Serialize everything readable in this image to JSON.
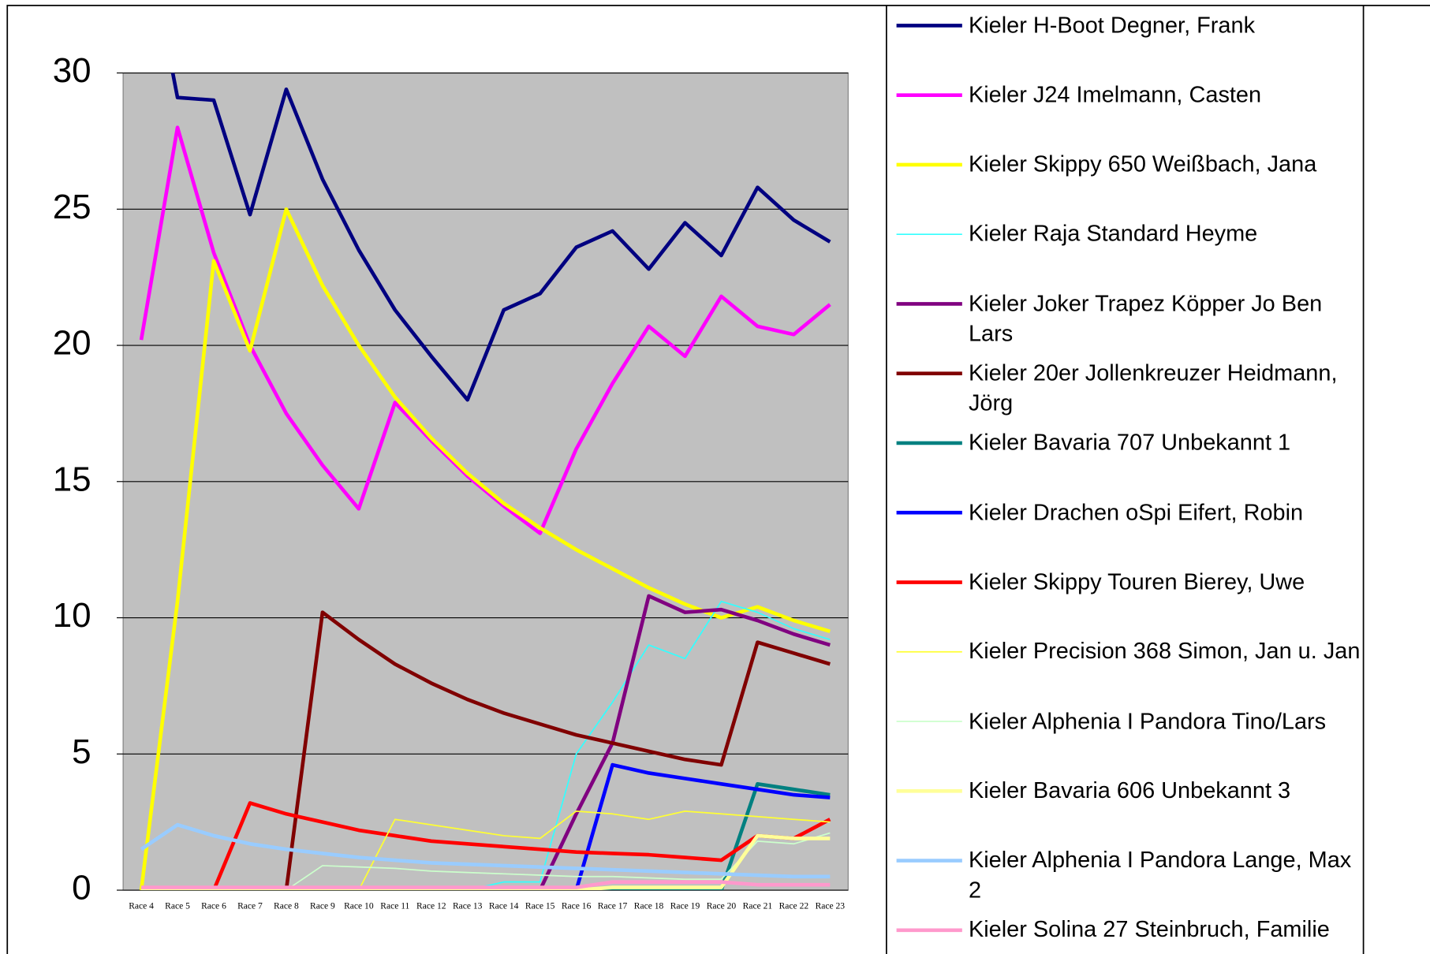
{
  "chart_data": {
    "type": "line",
    "categories": [
      "Race 4",
      "Race 5",
      "Race 6",
      "Race 7",
      "Race 8",
      "Race 9",
      "Race 10",
      "Race 11",
      "Race 12",
      "Race 13",
      "Race 14",
      "Race 15",
      "Race 16",
      "Race 17",
      "Race 18",
      "Race 19",
      "Race 20",
      "Race 21",
      "Race 22",
      "Race 23"
    ],
    "ylim": [
      0,
      30
    ],
    "yticks": [
      0,
      5,
      10,
      15,
      20,
      25,
      30
    ],
    "grid": true,
    "legend": "right",
    "series": [
      {
        "name": "Kieler H-Boot Degner, Frank",
        "color": "#000080",
        "width": 4,
        "values": [
          36,
          29.1,
          29.0,
          24.8,
          29.4,
          26.1,
          23.5,
          21.3,
          19.6,
          18.0,
          21.3,
          21.9,
          23.6,
          24.2,
          22.8,
          24.5,
          23.3,
          25.8,
          24.6,
          23.8
        ]
      },
      {
        "name": "Kieler J24 Imelmann, Casten",
        "color": "#ff00ff",
        "width": 4,
        "values": [
          20.2,
          28.0,
          23.4,
          20.0,
          17.5,
          15.6,
          14.0,
          17.9,
          16.5,
          15.2,
          14.1,
          13.1,
          16.2,
          18.6,
          20.7,
          19.6,
          21.8,
          20.7,
          20.4,
          21.5
        ]
      },
      {
        "name": "Kieler Skippy 650 Weißbach, Jana",
        "color": "#ffff00",
        "width": 4,
        "values": [
          0,
          10.6,
          23.1,
          19.8,
          25.0,
          22.2,
          20.0,
          18.1,
          16.6,
          15.3,
          14.2,
          13.3,
          12.5,
          11.8,
          11.1,
          10.5,
          10.0,
          10.4,
          9.9,
          9.5
        ]
      },
      {
        "name": "Kieler Raja Standard Heyme",
        "color": "#33ffff",
        "width": 1.5,
        "values": [
          0,
          0,
          0,
          0,
          0,
          0,
          0,
          0,
          0,
          0,
          0.3,
          0.3,
          5.0,
          6.9,
          9.0,
          8.5,
          10.6,
          10.2,
          9.6,
          9.2
        ]
      },
      {
        "name": "Kieler Joker Trapez Köpper Jo Ben Lars",
        "color": "#800080",
        "width": 4,
        "values": [
          0,
          0,
          0,
          0,
          0,
          0,
          0,
          0,
          0,
          0,
          0,
          0,
          2.8,
          5.4,
          10.8,
          10.2,
          10.3,
          9.9,
          9.4,
          9.0
        ]
      },
      {
        "name": "Kieler 20er Jollenkreuzer Heidmann, Jörg",
        "color": "#800000",
        "width": 4,
        "values": [
          0,
          0,
          0,
          0,
          0,
          10.2,
          9.2,
          8.3,
          7.6,
          7.0,
          6.5,
          6.1,
          5.7,
          5.4,
          5.1,
          4.8,
          4.6,
          9.1,
          8.7,
          8.3
        ]
      },
      {
        "name": "Kieler Bavaria 707 Unbekannt 1",
        "color": "#008080",
        "width": 4,
        "values": [
          0,
          0,
          0,
          0,
          0,
          0,
          0,
          0,
          0,
          0,
          0,
          0,
          0,
          0,
          0,
          0,
          0,
          3.9,
          3.7,
          3.5
        ]
      },
      {
        "name": "Kieler Drachen oSpi Eifert, Robin",
        "color": "#0000ff",
        "width": 4,
        "values": [
          0,
          0,
          0,
          0,
          0,
          0,
          0,
          0,
          0,
          0,
          0,
          0,
          0,
          4.6,
          4.3,
          4.1,
          3.9,
          3.7,
          3.5,
          3.4
        ]
      },
      {
        "name": "Kieler Skippy Touren Bierey, Uwe",
        "color": "#ff0000",
        "width": 4,
        "values": [
          0,
          0,
          0,
          3.2,
          2.8,
          2.5,
          2.2,
          2.0,
          1.8,
          1.7,
          1.6,
          1.5,
          1.4,
          1.35,
          1.3,
          1.2,
          1.1,
          2.0,
          1.9,
          2.6
        ]
      },
      {
        "name": "Kieler Precision 368 Simon, Jan u. Jan",
        "color": "#ffff33",
        "width": 1.5,
        "values": [
          0,
          0,
          0,
          0,
          0,
          0,
          0,
          2.6,
          2.4,
          2.2,
          2.0,
          1.9,
          2.9,
          2.8,
          2.6,
          2.9,
          2.8,
          2.7,
          2.6,
          2.5
        ]
      },
      {
        "name": "Kieler Alphenia I Pandora Tino/Lars",
        "color": "#ccffcc",
        "width": 1.5,
        "values": [
          0,
          0,
          0,
          0,
          0,
          0.9,
          0.85,
          0.8,
          0.7,
          0.65,
          0.6,
          0.55,
          0.5,
          0.5,
          0.45,
          0.4,
          0.4,
          1.8,
          1.7,
          2.1
        ]
      },
      {
        "name": "Kieler Bavaria 606 Unbekannt 3",
        "color": "#ffff99",
        "width": 4,
        "values": [
          0,
          0,
          0,
          0,
          0,
          0,
          0,
          0,
          0,
          0,
          0,
          0,
          0,
          0.1,
          0.1,
          0.1,
          0.1,
          2.0,
          1.9,
          1.9
        ]
      },
      {
        "name": "Kieler Alphenia I Pandora Lange, Max 2",
        "color": "#99ccff",
        "width": 4,
        "values": [
          1.5,
          2.4,
          2.0,
          1.7,
          1.5,
          1.35,
          1.2,
          1.1,
          1.0,
          0.95,
          0.9,
          0.85,
          0.8,
          0.75,
          0.7,
          0.65,
          0.6,
          0.55,
          0.5,
          0.5
        ]
      },
      {
        "name": "Kieler Solina 27 Steinbruch, Familie",
        "color": "#ff99cc",
        "width": 4,
        "values": [
          0.1,
          0.1,
          0.1,
          0.1,
          0.1,
          0.1,
          0.1,
          0.1,
          0.1,
          0.1,
          0.1,
          0.1,
          0.1,
          0.3,
          0.3,
          0.3,
          0.3,
          0.2,
          0.2,
          0.2
        ]
      }
    ]
  }
}
